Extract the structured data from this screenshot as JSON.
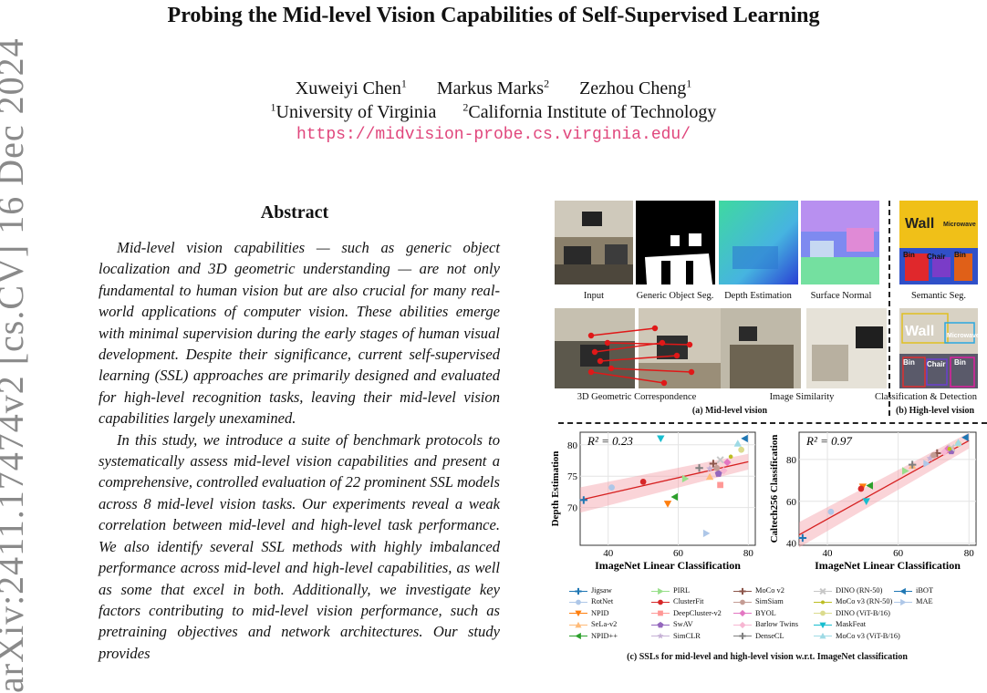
{
  "arxiv_id": "arXiv:2411.17474v2  [cs.CV]  16 Dec 2024",
  "paper": {
    "title": "Probing the Mid-level Vision Capabilities of Self-Supervised Learning",
    "authors": [
      {
        "name": "Xuweiyi Chen",
        "sup": "1"
      },
      {
        "name": "Markus Marks",
        "sup": "2"
      },
      {
        "name": "Zezhou Cheng",
        "sup": "1"
      }
    ],
    "affiliations": [
      {
        "sup": "1",
        "name": "University of Virginia"
      },
      {
        "sup": "2",
        "name": "California Institute of Technology"
      }
    ],
    "url": "https://midvision-probe.cs.virginia.edu/"
  },
  "abstract": {
    "heading": "Abstract",
    "p1": "Mid-level vision capabilities — such as generic object localization and 3D geometric understanding — are not only fundamental to human vision but are also crucial for many real-world applications of computer vision. These abilities emerge with minimal supervision during the early stages of human visual development. Despite their significance, current self-supervised learning (SSL) approaches are primarily designed and evaluated for high-level recognition tasks, leaving their mid-level vision capabilities largely unexamined.",
    "p2": "In this study, we introduce a suite of benchmark protocols to systematically assess mid-level vision capabilities and present a comprehensive, controlled evaluation of 22 prominent SSL models across 8 mid-level vision tasks. Our experiments reveal a weak correlation between mid-level and high-level task performance. We also identify several SSL methods with highly imbalanced performance across mid-level and high-level capabilities, as well as some that excel in both. Additionally, we investigate key factors contributing to mid-level vision performance, such as pretraining objectives and network architectures. Our study provides"
  },
  "figure": {
    "row1_captions": [
      "Input",
      "Generic Object Seg.",
      "Depth Estimation",
      "Surface Normal",
      "Semantic Seg."
    ],
    "row2_captions": [
      "3D Geometric Correspondence",
      "Image Similarity",
      "Classification & Detection"
    ],
    "subcaption_a": "(a) Mid-level vision",
    "subcaption_b": "(b) High-level vision",
    "subcaption_c": "(c) SSLs for mid-level and high-level vision w.r.t. ImageNet classification",
    "semantic_labels": {
      "wall": "Wall",
      "microwave": "Microwave",
      "bin": "Bin",
      "chair": "Chair"
    }
  },
  "chart_data": [
    {
      "type": "scatter",
      "title": "",
      "annotation": "R² = 0.23",
      "xlabel": "ImageNet Linear Classification",
      "ylabel": "Depth Estimation",
      "xlim": [
        32,
        82
      ],
      "ylim": [
        64,
        82
      ],
      "xticks": [
        40,
        60,
        80
      ],
      "yticks": [
        70,
        75,
        80
      ],
      "fit": {
        "x": [
          32,
          80
        ],
        "y": [
          71.2,
          77.3
        ]
      },
      "points": [
        {
          "label": "Jigsaw",
          "x": 33,
          "y": 71.2
        },
        {
          "label": "RotNet",
          "x": 41,
          "y": 73.2
        },
        {
          "label": "NPID",
          "x": 57,
          "y": 70.6
        },
        {
          "label": "SeLa-v2",
          "x": 69,
          "y": 74.9
        },
        {
          "label": "NPID++",
          "x": 59,
          "y": 71.7
        },
        {
          "label": "PIRL",
          "x": 62,
          "y": 74.6
        },
        {
          "label": "ClusterFit",
          "x": 50,
          "y": 74.1
        },
        {
          "label": "DeepCluster-v2",
          "x": 72,
          "y": 73.6
        },
        {
          "label": "SwAV",
          "x": 71.5,
          "y": 75.4
        },
        {
          "label": "SimCLR",
          "x": 69,
          "y": 76.2
        },
        {
          "label": "MoCo v2",
          "x": 70,
          "y": 77.0
        },
        {
          "label": "SimSiam",
          "x": 71,
          "y": 76.3
        },
        {
          "label": "BYOL",
          "x": 74,
          "y": 77.2
        },
        {
          "label": "Barlow Twins",
          "x": 73,
          "y": 75.9
        },
        {
          "label": "DenseCL",
          "x": 66,
          "y": 76.3
        },
        {
          "label": "DINO (RN-50)",
          "x": 72,
          "y": 77.6
        },
        {
          "label": "MoCo v3 (RN-50)",
          "x": 75,
          "y": 78.1
        },
        {
          "label": "DINO (ViT-B/16)",
          "x": 78,
          "y": 79.2
        },
        {
          "label": "MaskFeat",
          "x": 55,
          "y": 81.0
        },
        {
          "label": "MoCo v3 (ViT-B/16)",
          "x": 77,
          "y": 80.2
        },
        {
          "label": "iBOT",
          "x": 79,
          "y": 81.0
        },
        {
          "label": "MAE",
          "x": 68,
          "y": 65.9
        }
      ]
    },
    {
      "type": "scatter",
      "title": "",
      "annotation": "R² = 0.97",
      "xlabel": "ImageNet Linear Classification",
      "ylabel": "Caltech256 Classification",
      "xlim": [
        32,
        82
      ],
      "ylim": [
        39,
        93
      ],
      "xticks": [
        40,
        60,
        80
      ],
      "yticks": [
        40,
        60,
        80
      ],
      "fit": {
        "x": [
          32,
          80
        ],
        "y": [
          44,
          89
        ]
      },
      "points": [
        {
          "label": "Jigsaw",
          "x": 33,
          "y": 42.5
        },
        {
          "label": "RotNet",
          "x": 41,
          "y": 55.0
        },
        {
          "label": "NPID",
          "x": 50,
          "y": 67.0
        },
        {
          "label": "SeLa-v2",
          "x": 64,
          "y": 77.0
        },
        {
          "label": "NPID++",
          "x": 52,
          "y": 67.5
        },
        {
          "label": "PIRL",
          "x": 62,
          "y": 74.5
        },
        {
          "label": "ClusterFit",
          "x": 49.5,
          "y": 66.0
        },
        {
          "label": "DeepCluster-v2",
          "x": 75,
          "y": 84.5
        },
        {
          "label": "SwAV",
          "x": 75,
          "y": 84.0
        },
        {
          "label": "SimCLR",
          "x": 69,
          "y": 80.5
        },
        {
          "label": "MoCo v2",
          "x": 71,
          "y": 83.0
        },
        {
          "label": "SimSiam",
          "x": 70,
          "y": 82.0
        },
        {
          "label": "BYOL",
          "x": 74,
          "y": 85.0
        },
        {
          "label": "Barlow Twins",
          "x": 73,
          "y": 83.5
        },
        {
          "label": "DenseCL",
          "x": 64,
          "y": 77.5
        },
        {
          "label": "DINO (RN-50)",
          "x": 75,
          "y": 85.5
        },
        {
          "label": "MoCo v3 (RN-50)",
          "x": 74.5,
          "y": 85.0
        },
        {
          "label": "DINO (ViT-B/16)",
          "x": 77,
          "y": 87.5
        },
        {
          "label": "MaskFeat",
          "x": 51,
          "y": 60.0
        },
        {
          "label": "MoCo v3 (ViT-B/16)",
          "x": 77,
          "y": 88.0
        },
        {
          "label": "iBOT",
          "x": 79,
          "y": 90.5
        },
        {
          "label": "MAE",
          "x": 68,
          "y": 78.0
        }
      ]
    }
  ],
  "legend": [
    {
      "label": "Jigsaw",
      "color": "#1f77b4",
      "marker": "plus"
    },
    {
      "label": "RotNet",
      "color": "#aec7e8",
      "marker": "circle"
    },
    {
      "label": "NPID",
      "color": "#ff7f0e",
      "marker": "tri-down"
    },
    {
      "label": "SeLa-v2",
      "color": "#ffbb78",
      "marker": "tri-up"
    },
    {
      "label": "NPID++",
      "color": "#2ca02c",
      "marker": "tri-left"
    },
    {
      "label": "PIRL",
      "color": "#98df8a",
      "marker": "tri-right"
    },
    {
      "label": "ClusterFit",
      "color": "#d62728",
      "marker": "circle"
    },
    {
      "label": "DeepCluster-v2",
      "color": "#ff9896",
      "marker": "square"
    },
    {
      "label": "SwAV",
      "color": "#9467bd",
      "marker": "pentagon"
    },
    {
      "label": "SimCLR",
      "color": "#c5b0d5",
      "marker": "star"
    },
    {
      "label": "MoCo v2",
      "color": "#8c564b",
      "marker": "plus"
    },
    {
      "label": "SimSiam",
      "color": "#c49c94",
      "marker": "circle"
    },
    {
      "label": "BYOL",
      "color": "#e377c2",
      "marker": "diamond"
    },
    {
      "label": "Barlow Twins",
      "color": "#f7b6d2",
      "marker": "diamond"
    },
    {
      "label": "DenseCL",
      "color": "#7f7f7f",
      "marker": "plus"
    },
    {
      "label": "DINO (RN-50)",
      "color": "#c7c7c7",
      "marker": "x"
    },
    {
      "label": "MoCo v3 (RN-50)",
      "color": "#bcbd22",
      "marker": "dot"
    },
    {
      "label": "DINO (ViT-B/16)",
      "color": "#dbdb8d",
      "marker": "circle"
    },
    {
      "label": "MaskFeat",
      "color": "#17becf",
      "marker": "tri-down"
    },
    {
      "label": "MoCo v3 (ViT-B/16)",
      "color": "#9edae5",
      "marker": "tri-up"
    },
    {
      "label": "iBOT",
      "color": "#1f77b4",
      "marker": "tri-left"
    },
    {
      "label": "MAE",
      "color": "#aec7e8",
      "marker": "tri-right"
    }
  ]
}
